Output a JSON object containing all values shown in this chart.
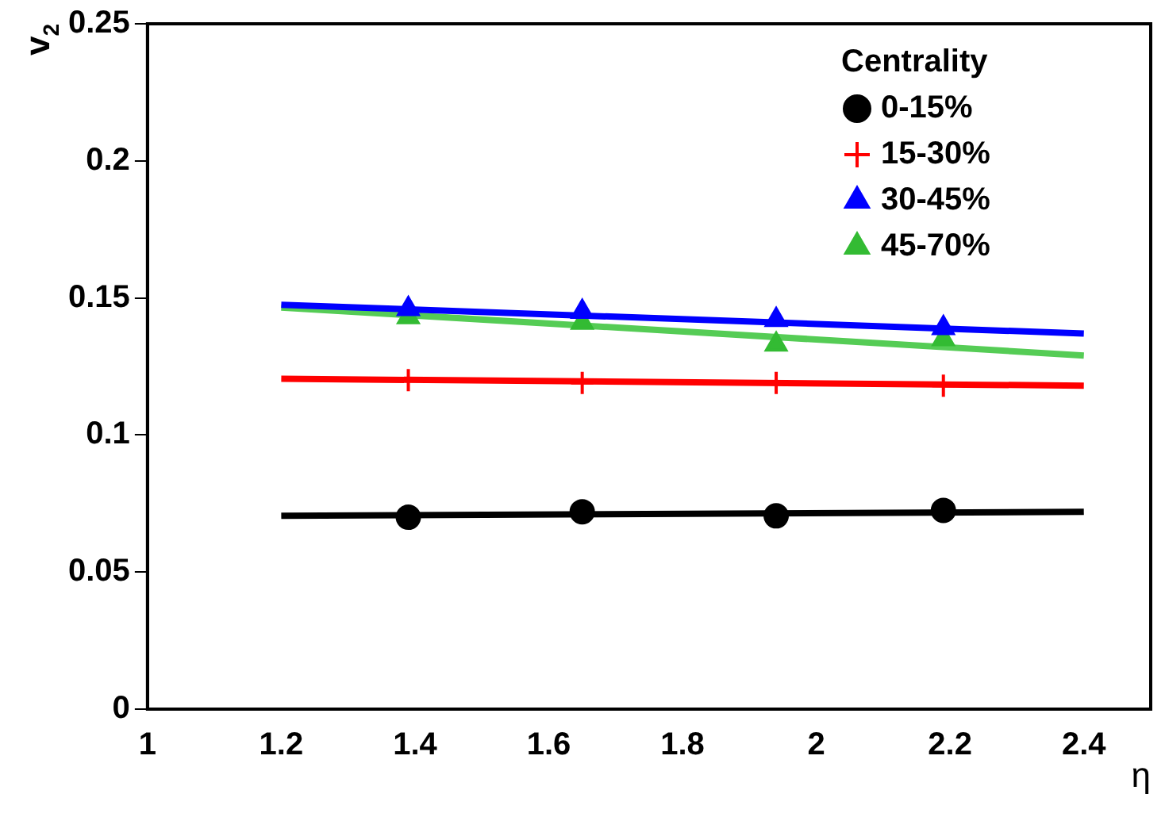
{
  "chart_data": {
    "type": "scatter",
    "xlabel": "η",
    "ylabel": "v$_{2}$",
    "legend_title": "Centrality",
    "legend": "top right",
    "grid": false,
    "xlim": [
      1,
      2.5
    ],
    "xticks": [
      1,
      1.2,
      1.4,
      1.6,
      1.8,
      2,
      2.2,
      2.4
    ],
    "ylim": [
      0,
      0.25
    ],
    "yticks": [
      0,
      0.05,
      0.1,
      0.15,
      0.2,
      0.25
    ],
    "series": [
      {
        "type": "line",
        "color": "#000000",
        "x": [
          1.2,
          2.4
        ],
        "values": [
          0.0705,
          0.072
        ],
        "marker": "none"
      },
      {
        "type": "line",
        "color": "#ff0000",
        "x": [
          1.2,
          2.4
        ],
        "values": [
          0.1205,
          0.118
        ],
        "marker": "none"
      },
      {
        "type": "line",
        "color": "#0000ff",
        "x": [
          1.2,
          2.4
        ],
        "values": [
          0.1475,
          0.137
        ],
        "marker": "none"
      },
      {
        "type": "line",
        "color": "#55cc55",
        "x": [
          1.2,
          2.4
        ],
        "values": [
          0.1465,
          0.129
        ],
        "marker": "none"
      },
      {
        "name": "0-15%",
        "color": "#000000",
        "marker": "circle",
        "x": [
          1.39,
          1.65,
          1.94,
          2.19
        ],
        "values": [
          0.07,
          0.072,
          0.0705,
          0.0725
        ]
      },
      {
        "name": "15-30%",
        "color": "#ff0000",
        "marker": "cross",
        "x": [
          1.39,
          1.65,
          1.94,
          2.19
        ],
        "values": [
          0.12,
          0.119,
          0.119,
          0.118
        ]
      },
      {
        "name": "30-45%",
        "color": "#0000ff",
        "marker": "triangle",
        "x": [
          1.39,
          1.65,
          1.94,
          2.19
        ],
        "values": [
          0.146,
          0.145,
          0.142,
          0.139
        ]
      },
      {
        "name": "45-70%",
        "color": "#33bb33",
        "marker": "triangle",
        "x": [
          1.39,
          1.65,
          1.94,
          2.19
        ],
        "values": [
          0.143,
          0.141,
          0.133,
          0.135
        ]
      }
    ]
  }
}
